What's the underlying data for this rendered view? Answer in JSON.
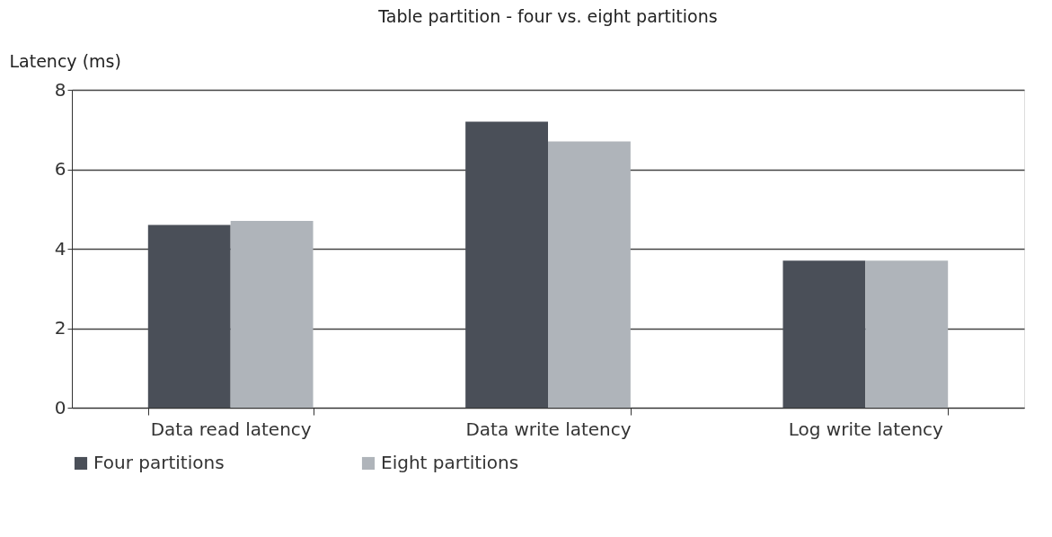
{
  "chart_data": {
    "type": "bar",
    "title": "Table partition - four vs. eight partitions",
    "ylabel": "Latency (ms)",
    "categories": [
      "Data read latency",
      "Data write latency",
      "Log write latency"
    ],
    "series": [
      {
        "name": "Four partitions",
        "color": "#4a4f58",
        "values": [
          4.6,
          7.2,
          3.7
        ]
      },
      {
        "name": "Eight partitions",
        "color": "#afb4ba",
        "values": [
          4.7,
          6.7,
          3.7
        ]
      }
    ],
    "ylim": [
      0,
      8
    ],
    "yticks": [
      0,
      2,
      4,
      6,
      8
    ],
    "grid": "y",
    "legend": "bottom"
  }
}
